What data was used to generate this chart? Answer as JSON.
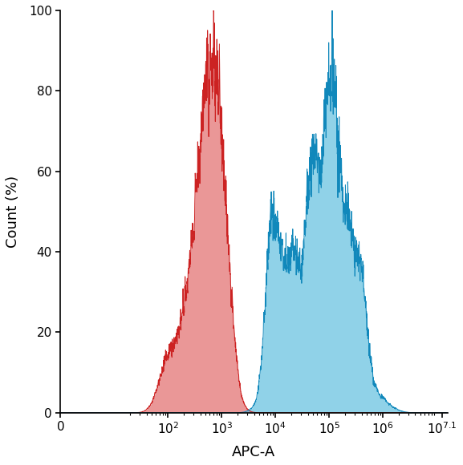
{
  "xlabel": "APC-A",
  "ylabel": "Count (%)",
  "ylim": [
    0,
    100
  ],
  "yticks": [
    0,
    20,
    40,
    60,
    80,
    100
  ],
  "xtick_labels": [
    "0",
    "10^2",
    "10^3",
    "10^4",
    "10^5",
    "10^6",
    "10^7.1"
  ],
  "xtick_positions": [
    0,
    2,
    3,
    4,
    5,
    6,
    7.1
  ],
  "red_fill_color": "#E06060",
  "red_line_color": "#CC2222",
  "blue_fill_color": "#55BBDD",
  "blue_line_color": "#1188BB",
  "background_color": "#ffffff",
  "red_alpha": 0.65,
  "blue_alpha": 0.65,
  "xlim": [
    0,
    7.2
  ]
}
